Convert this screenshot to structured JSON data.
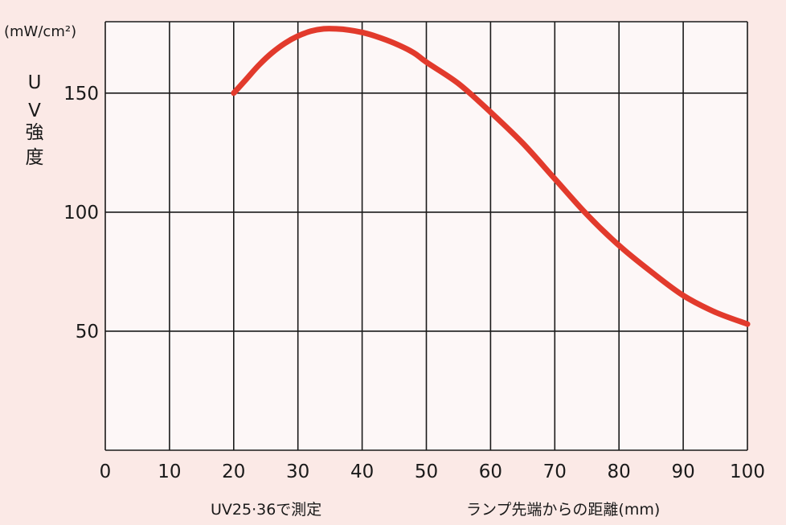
{
  "chart_data": {
    "type": "line",
    "ylabel_unit": "(mW/cm²)",
    "ylabel_chars": [
      "U",
      "V",
      "強",
      "度"
    ],
    "xlabel": "ランプ先端からの距離(mm)",
    "note": "UV25·36で測定",
    "xlim": [
      0,
      100
    ],
    "ylim": [
      0,
      180
    ],
    "x_ticks": [
      0,
      10,
      20,
      30,
      40,
      50,
      60,
      70,
      80,
      90,
      100
    ],
    "y_ticks": [
      50,
      100,
      150
    ],
    "grid": true,
    "colors": {
      "background": "#fbe9e6",
      "plot_area": "#fdf7f7",
      "grid": "#1a1a1a",
      "series": "#e23a2c"
    },
    "series": [
      {
        "x": [
          20,
          22,
          24,
          26,
          28,
          30,
          32,
          34,
          36,
          38,
          40,
          42,
          45,
          48,
          50,
          55,
          60,
          65,
          70,
          75,
          80,
          85,
          90,
          95,
          100
        ],
        "y": [
          150,
          156,
          162,
          167,
          171,
          174,
          176,
          177,
          177,
          176.5,
          175.5,
          174,
          171,
          167,
          163,
          154,
          142,
          129,
          114,
          99,
          86,
          75,
          65,
          58,
          53
        ]
      }
    ]
  }
}
